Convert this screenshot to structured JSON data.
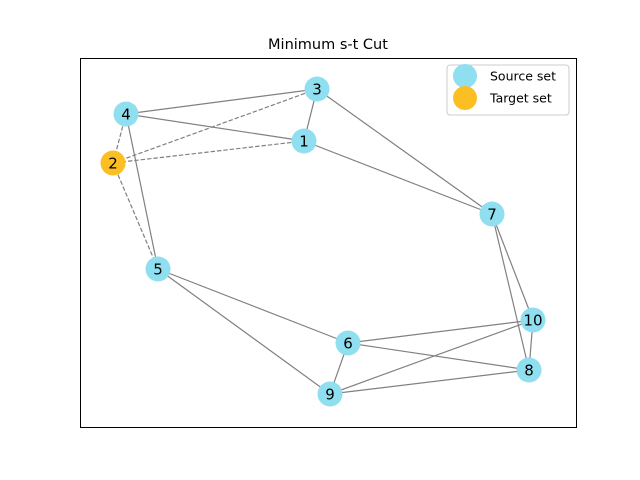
{
  "title": "Minimum s-t Cut",
  "colors": {
    "source": "#8fdff0",
    "target": "#fbbf24",
    "edge": "#808080",
    "axes": "#000000"
  },
  "legend": {
    "source_label": "Source set",
    "target_label": "Target set"
  },
  "graph": {
    "nodes": [
      {
        "id": "1",
        "set": "source"
      },
      {
        "id": "2",
        "set": "target"
      },
      {
        "id": "3",
        "set": "source"
      },
      {
        "id": "4",
        "set": "source"
      },
      {
        "id": "5",
        "set": "source"
      },
      {
        "id": "6",
        "set": "source"
      },
      {
        "id": "7",
        "set": "source"
      },
      {
        "id": "8",
        "set": "source"
      },
      {
        "id": "9",
        "set": "source"
      },
      {
        "id": "10",
        "set": "source"
      }
    ],
    "edges": [
      {
        "from": "4",
        "to": "3",
        "cut": false
      },
      {
        "from": "4",
        "to": "1",
        "cut": false
      },
      {
        "from": "4",
        "to": "5",
        "cut": false
      },
      {
        "from": "4",
        "to": "2",
        "cut": true
      },
      {
        "from": "3",
        "to": "1",
        "cut": false
      },
      {
        "from": "3",
        "to": "7",
        "cut": false
      },
      {
        "from": "3",
        "to": "2",
        "cut": true
      },
      {
        "from": "1",
        "to": "7",
        "cut": false
      },
      {
        "from": "1",
        "to": "2",
        "cut": true
      },
      {
        "from": "2",
        "to": "5",
        "cut": true
      },
      {
        "from": "5",
        "to": "6",
        "cut": false
      },
      {
        "from": "5",
        "to": "9",
        "cut": false
      },
      {
        "from": "7",
        "to": "10",
        "cut": false
      },
      {
        "from": "7",
        "to": "8",
        "cut": false
      },
      {
        "from": "6",
        "to": "10",
        "cut": false
      },
      {
        "from": "6",
        "to": "8",
        "cut": false
      },
      {
        "from": "6",
        "to": "9",
        "cut": false
      },
      {
        "from": "9",
        "to": "10",
        "cut": false
      },
      {
        "from": "9",
        "to": "8",
        "cut": false
      },
      {
        "from": "10",
        "to": "8",
        "cut": false
      }
    ]
  }
}
